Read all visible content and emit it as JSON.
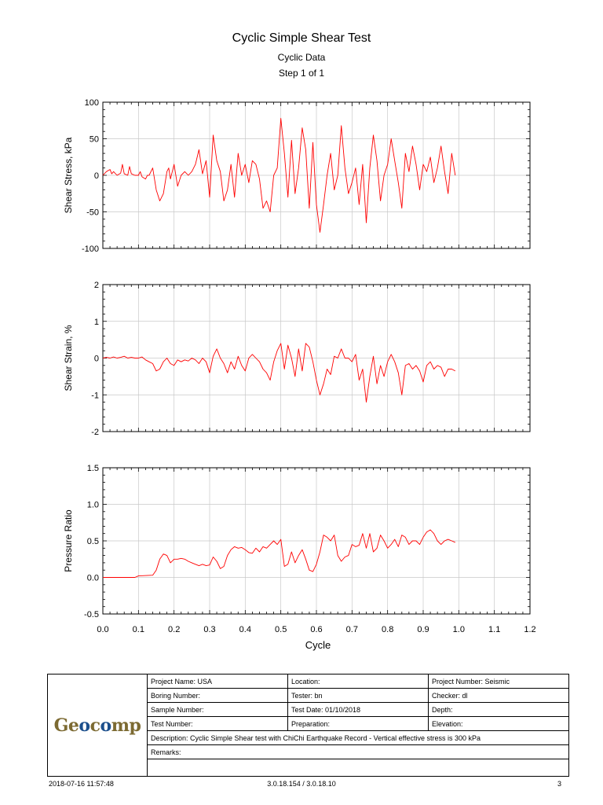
{
  "header": {
    "title": "Cyclic Simple Shear Test",
    "subtitle1": "Cyclic Data",
    "subtitle2": "Step 1 of 1"
  },
  "chart_data": [
    {
      "type": "line",
      "ylabel": "Shear Stress, kPa",
      "xlabel": "",
      "xlim": [
        0,
        1.2
      ],
      "ylim": [
        -100,
        100
      ],
      "x_ticks": [
        0,
        0.1,
        0.2,
        0.3,
        0.4,
        0.5,
        0.6,
        0.7,
        0.8,
        0.9,
        1.0,
        1.1,
        1.2
      ],
      "y_ticks": [
        -100,
        -50,
        0,
        50,
        100
      ],
      "y_tick_labels": [
        "-100",
        "-50",
        "0",
        "50",
        "100"
      ],
      "grid": true,
      "series": [
        {
          "color": "#ff0000",
          "x": [
            0,
            0.01,
            0.02,
            0.025,
            0.03,
            0.04,
            0.05,
            0.055,
            0.06,
            0.07,
            0.075,
            0.08,
            0.09,
            0.1,
            0.105,
            0.11,
            0.12,
            0.125,
            0.13,
            0.14,
            0.15,
            0.16,
            0.17,
            0.18,
            0.185,
            0.19,
            0.2,
            0.21,
            0.22,
            0.23,
            0.24,
            0.25,
            0.26,
            0.27,
            0.28,
            0.29,
            0.3,
            0.31,
            0.32,
            0.33,
            0.34,
            0.35,
            0.36,
            0.37,
            0.38,
            0.39,
            0.4,
            0.41,
            0.42,
            0.43,
            0.44,
            0.45,
            0.46,
            0.47,
            0.48,
            0.49,
            0.5,
            0.51,
            0.52,
            0.53,
            0.54,
            0.55,
            0.56,
            0.57,
            0.58,
            0.59,
            0.6,
            0.61,
            0.62,
            0.63,
            0.64,
            0.65,
            0.66,
            0.67,
            0.68,
            0.69,
            0.7,
            0.71,
            0.72,
            0.73,
            0.74,
            0.75,
            0.76,
            0.77,
            0.78,
            0.79,
            0.8,
            0.81,
            0.82,
            0.83,
            0.84,
            0.85,
            0.86,
            0.87,
            0.88,
            0.89,
            0.9,
            0.91,
            0.92,
            0.93,
            0.94,
            0.95,
            0.96,
            0.97,
            0.98,
            0.99
          ],
          "y": [
            0,
            5,
            8,
            2,
            5,
            0,
            3,
            15,
            2,
            0,
            12,
            2,
            0,
            0,
            5,
            -2,
            -5,
            0,
            0,
            10,
            -20,
            -35,
            -25,
            5,
            10,
            -5,
            15,
            -15,
            0,
            5,
            0,
            5,
            15,
            35,
            2,
            20,
            -30,
            55,
            20,
            5,
            -35,
            -20,
            15,
            -30,
            30,
            0,
            15,
            -10,
            20,
            15,
            -5,
            -45,
            -35,
            -50,
            0,
            10,
            78,
            30,
            -30,
            48,
            -25,
            10,
            65,
            35,
            -45,
            45,
            -40,
            -78,
            -40,
            0,
            30,
            -20,
            0,
            68,
            10,
            -25,
            -10,
            10,
            -40,
            15,
            -65,
            10,
            55,
            20,
            -35,
            0,
            15,
            50,
            20,
            -10,
            -45,
            30,
            5,
            40,
            15,
            -20,
            15,
            5,
            25,
            -10,
            10,
            40,
            5,
            -25,
            30,
            0
          ]
        }
      ]
    },
    {
      "type": "line",
      "ylabel": "Shear Strain, %",
      "xlabel": "",
      "xlim": [
        0,
        1.2
      ],
      "ylim": [
        -2,
        2
      ],
      "x_ticks": [
        0,
        0.1,
        0.2,
        0.3,
        0.4,
        0.5,
        0.6,
        0.7,
        0.8,
        0.9,
        1.0,
        1.1,
        1.2
      ],
      "y_ticks": [
        -2,
        -1,
        0,
        1,
        2
      ],
      "y_tick_labels": [
        "-2",
        "-1",
        "0",
        "1",
        "2"
      ],
      "grid": true,
      "series": [
        {
          "color": "#ff0000",
          "x": [
            0,
            0.01,
            0.02,
            0.03,
            0.04,
            0.05,
            0.06,
            0.07,
            0.08,
            0.09,
            0.1,
            0.11,
            0.12,
            0.13,
            0.14,
            0.15,
            0.16,
            0.17,
            0.18,
            0.19,
            0.2,
            0.21,
            0.22,
            0.23,
            0.24,
            0.25,
            0.26,
            0.27,
            0.28,
            0.29,
            0.3,
            0.31,
            0.32,
            0.33,
            0.34,
            0.35,
            0.36,
            0.37,
            0.38,
            0.39,
            0.4,
            0.41,
            0.42,
            0.43,
            0.44,
            0.45,
            0.46,
            0.47,
            0.48,
            0.49,
            0.5,
            0.51,
            0.52,
            0.53,
            0.54,
            0.55,
            0.56,
            0.57,
            0.58,
            0.59,
            0.6,
            0.61,
            0.62,
            0.63,
            0.64,
            0.65,
            0.66,
            0.67,
            0.68,
            0.69,
            0.7,
            0.71,
            0.72,
            0.73,
            0.74,
            0.75,
            0.76,
            0.77,
            0.78,
            0.79,
            0.8,
            0.81,
            0.82,
            0.83,
            0.84,
            0.85,
            0.86,
            0.87,
            0.88,
            0.89,
            0.9,
            0.91,
            0.92,
            0.93,
            0.94,
            0.95,
            0.96,
            0.97,
            0.98,
            0.99
          ],
          "y": [
            0,
            0.02,
            0,
            0.03,
            0,
            0.02,
            0.05,
            0,
            0.02,
            0,
            0,
            0.03,
            -0.05,
            -0.1,
            -0.15,
            -0.35,
            -0.3,
            -0.1,
            0,
            -0.15,
            -0.2,
            -0.05,
            -0.1,
            -0.05,
            -0.08,
            0,
            -0.05,
            -0.15,
            0,
            -0.1,
            -0.4,
            0.05,
            0.25,
            0,
            -0.15,
            -0.4,
            -0.1,
            -0.3,
            0.05,
            -0.2,
            -0.35,
            0,
            0.1,
            0,
            -0.1,
            -0.3,
            -0.4,
            -0.6,
            -0.1,
            0.2,
            0.4,
            -0.3,
            0.35,
            0,
            -0.5,
            0.25,
            -0.35,
            0.4,
            0.3,
            -0.1,
            -0.6,
            -1.0,
            -0.7,
            -0.3,
            -0.45,
            0.05,
            0,
            0.25,
            0,
            0,
            -0.1,
            0.1,
            -0.6,
            -0.3,
            -1.2,
            -0.5,
            0.05,
            -0.7,
            -0.2,
            -0.5,
            -0.1,
            0.1,
            -0.1,
            -0.4,
            -1.0,
            -0.2,
            -0.15,
            -0.3,
            -0.2,
            -0.35,
            -0.65,
            -0.2,
            -0.1,
            -0.3,
            -0.2,
            -0.25,
            -0.5,
            -0.3,
            -0.3,
            -0.35
          ]
        }
      ]
    },
    {
      "type": "line",
      "ylabel": "Pressure Ratio",
      "xlabel": "Cycle",
      "xlim": [
        0,
        1.2
      ],
      "ylim": [
        -0.5,
        1.5
      ],
      "x_ticks": [
        0,
        0.1,
        0.2,
        0.3,
        0.4,
        0.5,
        0.6,
        0.7,
        0.8,
        0.9,
        1.0,
        1.1,
        1.2
      ],
      "x_tick_labels": [
        "0.0",
        "0.1",
        "0.2",
        "0.3",
        "0.4",
        "0.5",
        "0.6",
        "0.7",
        "0.8",
        "0.9",
        "1.0",
        "1.1",
        "1.2"
      ],
      "y_ticks": [
        -0.5,
        0,
        0.5,
        1.0,
        1.5
      ],
      "y_tick_labels": [
        "-0.5",
        "0.0",
        "0.5",
        "1.0",
        "1.5"
      ],
      "grid": true,
      "series": [
        {
          "color": "#ff0000",
          "x": [
            0,
            0.05,
            0.09,
            0.1,
            0.14,
            0.15,
            0.16,
            0.17,
            0.18,
            0.19,
            0.2,
            0.21,
            0.22,
            0.23,
            0.24,
            0.25,
            0.26,
            0.27,
            0.28,
            0.29,
            0.3,
            0.31,
            0.32,
            0.33,
            0.34,
            0.35,
            0.36,
            0.37,
            0.38,
            0.39,
            0.4,
            0.41,
            0.42,
            0.43,
            0.44,
            0.45,
            0.46,
            0.47,
            0.48,
            0.49,
            0.5,
            0.51,
            0.52,
            0.53,
            0.54,
            0.55,
            0.56,
            0.57,
            0.58,
            0.59,
            0.6,
            0.61,
            0.62,
            0.63,
            0.64,
            0.65,
            0.66,
            0.67,
            0.68,
            0.69,
            0.7,
            0.71,
            0.72,
            0.73,
            0.74,
            0.75,
            0.76,
            0.77,
            0.78,
            0.79,
            0.8,
            0.81,
            0.82,
            0.83,
            0.84,
            0.85,
            0.86,
            0.87,
            0.88,
            0.89,
            0.9,
            0.91,
            0.92,
            0.93,
            0.94,
            0.95,
            0.96,
            0.97,
            0.98,
            0.99
          ],
          "y": [
            0,
            0,
            0,
            0.02,
            0.03,
            0.1,
            0.25,
            0.32,
            0.3,
            0.2,
            0.25,
            0.25,
            0.26,
            0.25,
            0.22,
            0.2,
            0.18,
            0.16,
            0.18,
            0.16,
            0.17,
            0.28,
            0.22,
            0.12,
            0.15,
            0.3,
            0.38,
            0.42,
            0.4,
            0.41,
            0.38,
            0.34,
            0.33,
            0.4,
            0.35,
            0.42,
            0.4,
            0.45,
            0.5,
            0.45,
            0.52,
            0.15,
            0.18,
            0.35,
            0.2,
            0.3,
            0.38,
            0.25,
            0.1,
            0.08,
            0.18,
            0.35,
            0.58,
            0.55,
            0.5,
            0.58,
            0.3,
            0.22,
            0.28,
            0.3,
            0.45,
            0.42,
            0.44,
            0.6,
            0.4,
            0.6,
            0.35,
            0.4,
            0.58,
            0.5,
            0.4,
            0.45,
            0.52,
            0.42,
            0.58,
            0.55,
            0.45,
            0.5,
            0.5,
            0.45,
            0.55,
            0.62,
            0.65,
            0.6,
            0.5,
            0.45,
            0.5,
            0.52,
            0.5,
            0.48
          ]
        }
      ]
    }
  ],
  "info_table": {
    "logo": "Geocomp",
    "project_name": "Project Name: USA",
    "location": "Location:",
    "project_number": "Project Number: Seismic",
    "boring_number": "Boring Number:",
    "tester": "Tester: bn",
    "checker": "Checker: dl",
    "sample_number": "Sample Number:",
    "test_date": "Test Date: 01/10/2018",
    "depth": "Depth:",
    "test_number": "Test Number:",
    "preparation": "Preparation:",
    "elevation": "Elevation:",
    "description": "Description: Cyclic Simple Shear test with ChiChi Earthquake Record - Vertical effective stress is 300 kPa",
    "remarks": "Remarks:"
  },
  "footer": {
    "timestamp": "2018-07-16 11:57:48",
    "version": "3.0.18.154 / 3.0.18.10",
    "page_number": "3"
  }
}
